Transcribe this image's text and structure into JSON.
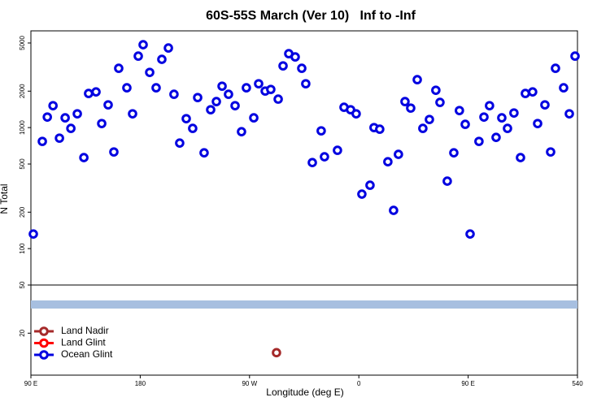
{
  "chart_data": {
    "type": "scatter",
    "title": "60S-55S March (Ver 10)   Inf to -Inf",
    "xlabel": "Longitude (deg E)",
    "ylabel": "N Total",
    "xlim": [
      90,
      540
    ],
    "xticks": [
      {
        "value": 90,
        "label": "90 E"
      },
      180,
      {
        "value": 270,
        "label": "90 W"
      },
      {
        "value": 360,
        "label": "0"
      },
      {
        "value": 450,
        "label": "90 E"
      },
      540
    ],
    "ylim": [
      9,
      6300
    ],
    "yscale": "log",
    "yticks": [
      20,
      50,
      100,
      200,
      500,
      1000,
      2000,
      5000
    ],
    "hline": 50,
    "band": {
      "value": 34.5,
      "color": "#a7bfe0"
    },
    "legend": "lower left",
    "series": [
      {
        "name": "Land Nadir",
        "color": "#a52a2a",
        "x": [
          292.2
        ],
        "values": [
          13.8
        ]
      },
      {
        "name": "Land Glint",
        "color": "#ff0000",
        "x": [],
        "values": []
      },
      {
        "name": "Ocean Glint",
        "color": "#0000e0",
        "x": [
          92.0,
          99.4,
          103.5,
          108.2,
          113.5,
          118.2,
          122.9,
          128.2,
          133.6,
          137.5,
          143.6,
          148.3,
          153.6,
          158.3,
          162.3,
          169.0,
          173.7,
          178.4,
          182.4,
          187.8,
          193.1,
          197.8,
          203.2,
          207.8,
          212.5,
          217.9,
          223.2,
          227.3,
          232.6,
          238.0,
          242.7,
          247.4,
          252.7,
          258.1,
          263.4,
          267.4,
          273.5,
          277.5,
          282.9,
          287.5,
          293.6,
          297.6,
          302.3,
          307.6,
          313.0,
          316.3,
          321.7,
          329.0,
          331.7,
          342.4,
          347.8,
          353.2,
          357.8,
          362.5,
          369.2,
          372.5,
          377.2,
          383.9,
          388.6,
          392.6,
          398.0,
          402.7,
          408.1,
          412.7,
          418.1,
          423.4,
          426.8,
          432.8,
          438.2,
          442.8,
          447.6,
          451.6,
          458.9,
          463.0,
          467.6,
          473.0,
          477.7,
          482.4,
          487.7,
          493.1,
          497.1,
          503.1,
          507.2,
          513.2,
          517.9,
          521.9,
          528.6,
          533.3,
          538.0
        ],
        "values": [
          132,
          769,
          1222,
          1517,
          818,
          1204,
          985,
          1300,
          565,
          1914,
          1972,
          1080,
          1541,
          629,
          3090,
          2133,
          1300,
          3896,
          4839,
          2858,
          2133,
          3664,
          4548,
          1885,
          745,
          1185,
          985,
          1771,
          619,
          1405,
          1640,
          2199,
          1885,
          1517,
          925,
          2133,
          1204,
          2303,
          2004,
          2067,
          1718,
          3236,
          4082,
          3837,
          3090,
          2303,
          514,
          940,
          574,
          649,
          1472,
          1405,
          1300,
          282,
          334,
          1000,
          970,
          522,
          207,
          601,
          1640,
          1449,
          2489,
          985,
          1167,
          2035,
          1615,
          361,
          619,
          1383,
          1064,
          132,
          769,
          1222,
          1517,
          830,
          1204,
          985,
          1320,
          565,
          1914,
          1972,
          1080,
          1541,
          629,
          3090,
          2133,
          1300,
          3896
        ]
      }
    ]
  }
}
